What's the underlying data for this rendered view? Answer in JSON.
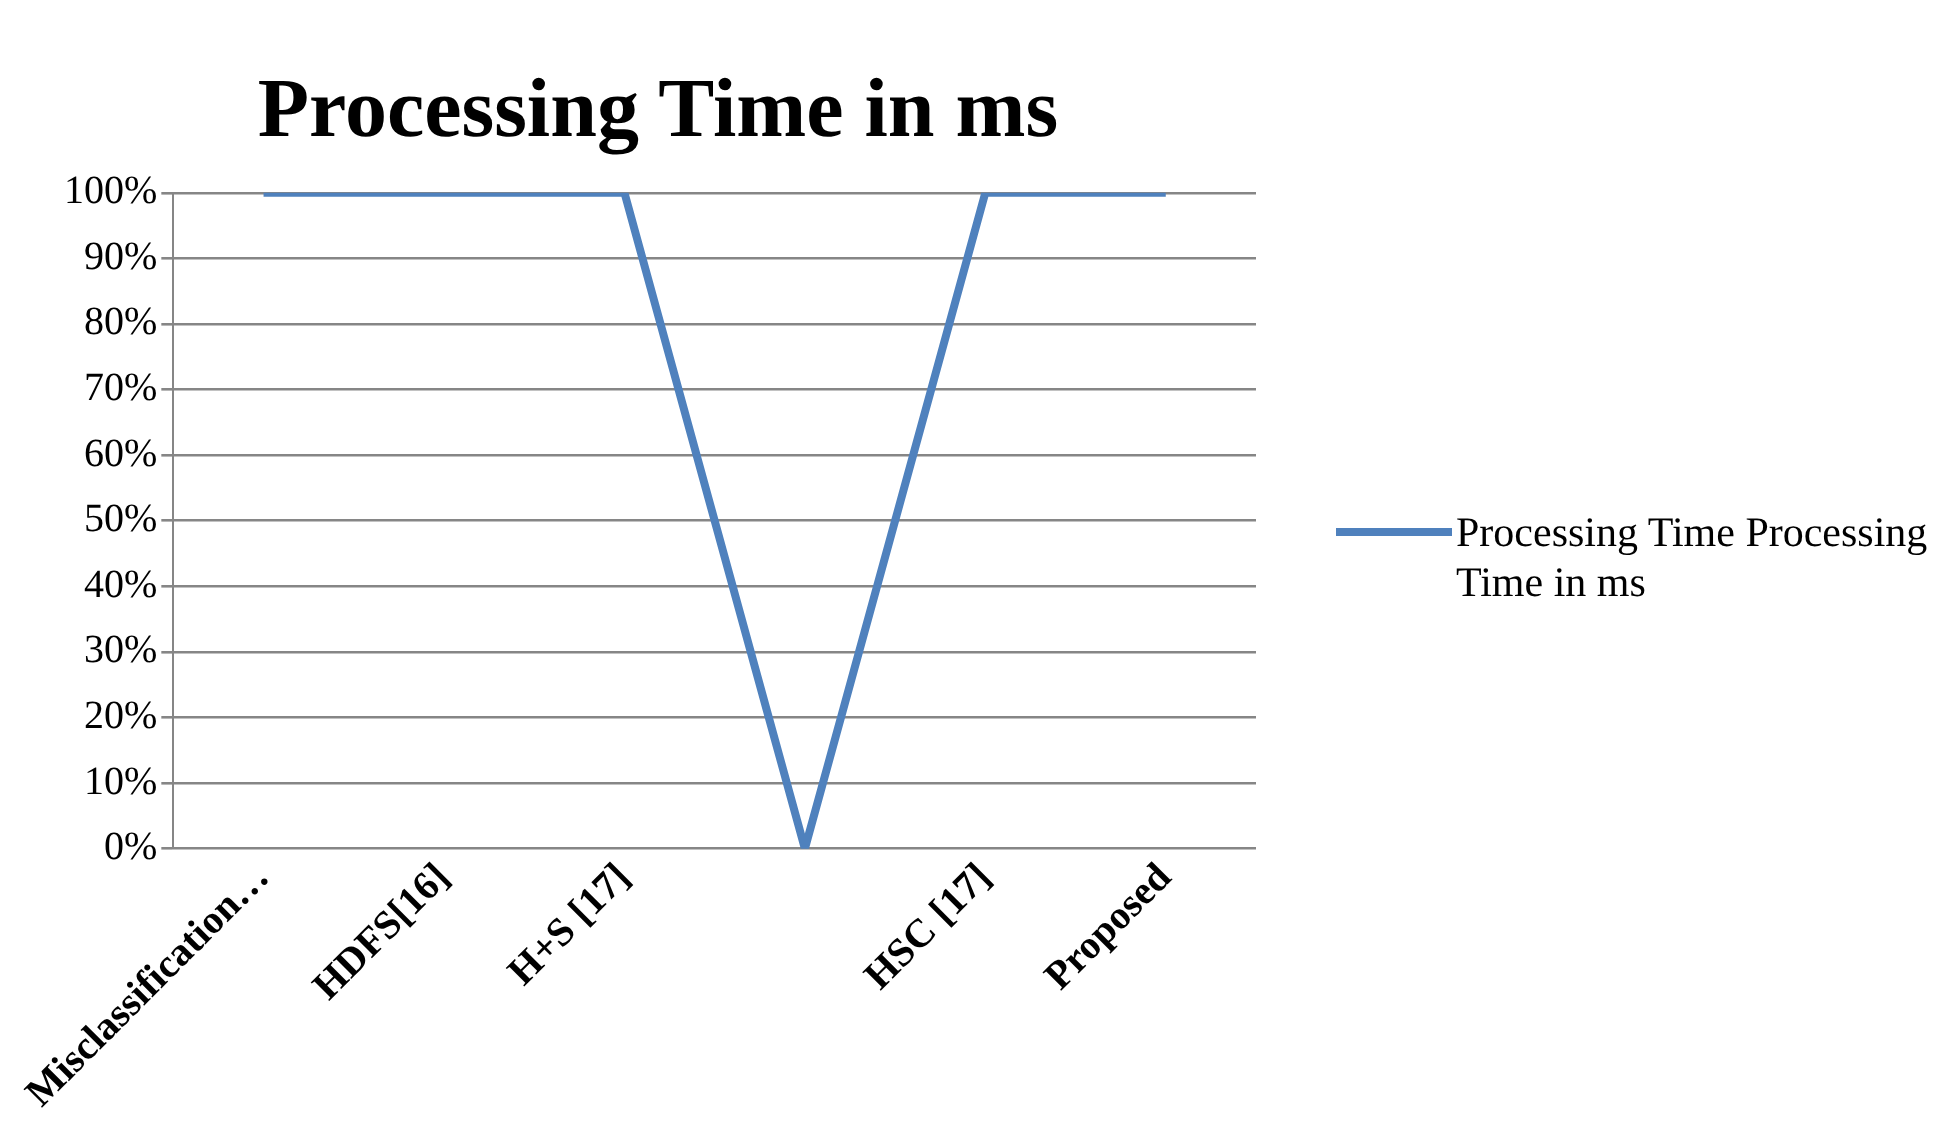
{
  "chart_data": {
    "type": "line",
    "title": "Processing Time in ms",
    "categories": [
      "Misclassification…",
      "HDFS[16]",
      "H+S [17]",
      null,
      "HSC [17]",
      "Proposed"
    ],
    "series": [
      {
        "name": "Processing Time Processing Time in ms",
        "color": "#4f81bd",
        "values": [
          100,
          100,
          100,
          0,
          100,
          100
        ]
      }
    ],
    "ylim": [
      0,
      100
    ],
    "yticks": [
      {
        "value": 0,
        "label": "0%"
      },
      {
        "value": 10,
        "label": "10%"
      },
      {
        "value": 20,
        "label": "20%"
      },
      {
        "value": 30,
        "label": "30%"
      },
      {
        "value": 40,
        "label": "40%"
      },
      {
        "value": 50,
        "label": "50%"
      },
      {
        "value": 60,
        "label": "60%"
      },
      {
        "value": 70,
        "label": "70%"
      },
      {
        "value": 80,
        "label": "80%"
      },
      {
        "value": 90,
        "label": "90%"
      },
      {
        "value": 100,
        "label": "100%"
      }
    ],
    "grid": "y",
    "legend": "right",
    "marker": "none",
    "line_style": "solid"
  }
}
